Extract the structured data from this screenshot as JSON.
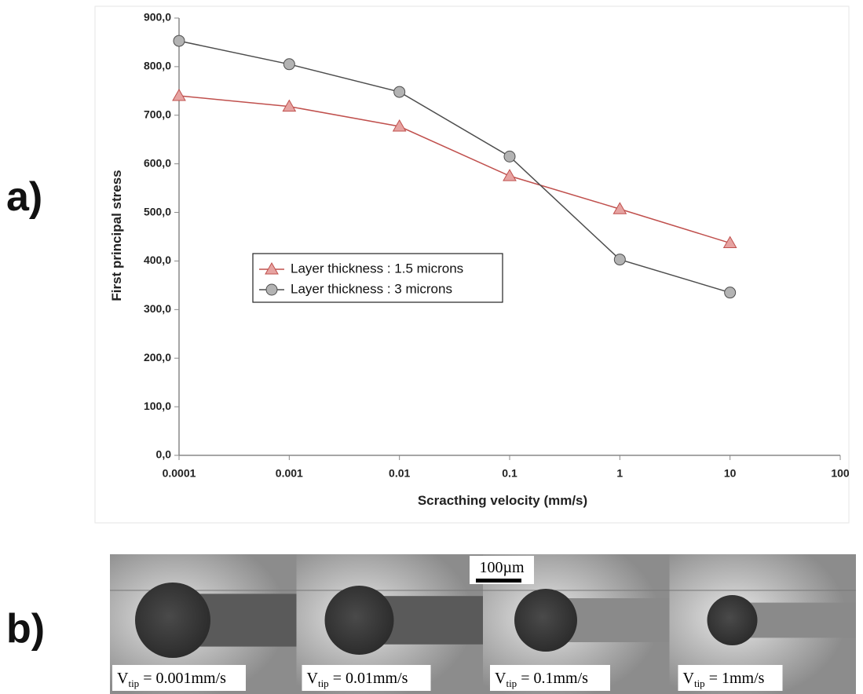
{
  "panel_labels": [
    "a)",
    "b)"
  ],
  "chart_data": {
    "type": "line",
    "y_label": "First principal stress",
    "x_label": "Scracthing velocity (mm/s)",
    "xscale": "log",
    "x": [
      0.0001,
      0.001,
      0.01,
      0.1,
      1,
      10
    ],
    "xlim": [
      0.0001,
      100
    ],
    "xticks": [
      0.0001,
      0.001,
      0.01,
      0.1,
      1,
      10,
      100
    ],
    "ylim": [
      0,
      900
    ],
    "yticks": [
      {
        "value": 0,
        "label": "0,0"
      },
      {
        "value": 100,
        "label": "100,0"
      },
      {
        "value": 200,
        "label": "200,0"
      },
      {
        "value": 300,
        "label": "300,0"
      },
      {
        "value": 400,
        "label": "400,0"
      },
      {
        "value": 500,
        "label": "500,0"
      },
      {
        "value": 600,
        "label": "600,0"
      },
      {
        "value": 700,
        "label": "700,0"
      },
      {
        "value": 800,
        "label": "800,0"
      },
      {
        "value": 900,
        "label": "900,0"
      }
    ],
    "grid": false,
    "series": [
      {
        "name": "Layer thickness : 1.5 microns",
        "color": "#c0504d",
        "marker": "triangle",
        "marker_color": "#e6a3a1",
        "values": [
          740,
          718,
          677,
          575,
          507,
          437
        ]
      },
      {
        "name": "Layer thickness : 3 microns",
        "color": "#4d4d4d",
        "marker": "circle",
        "marker_color": "#b3b3b3",
        "values": [
          853,
          805,
          748,
          615,
          403,
          335
        ]
      }
    ]
  },
  "images": {
    "scale_bar": "100µm",
    "captions": [
      {
        "main": "V",
        "sub": "tip",
        "rest": " = 0.001mm/s"
      },
      {
        "main": "V",
        "sub": "tip",
        "rest": " = 0.01mm/s"
      },
      {
        "main": "V",
        "sub": "tip",
        "rest": " = 0.1mm/s"
      },
      {
        "main": "V",
        "sub": "tip",
        "rest": " = 1mm/s"
      }
    ]
  }
}
